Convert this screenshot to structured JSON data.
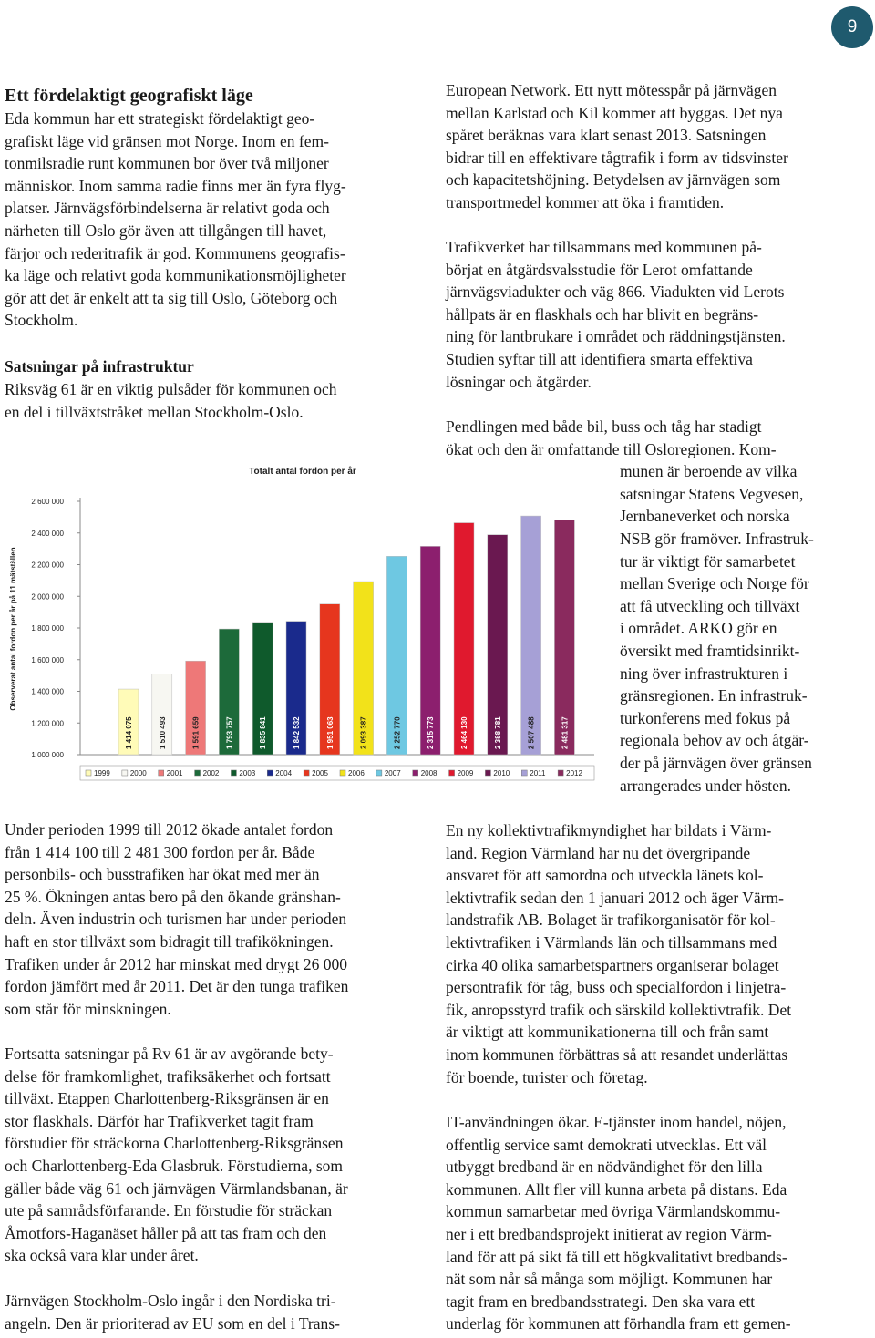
{
  "page_number": "9",
  "left": {
    "heading": "Ett fördelaktigt geografiskt läge",
    "paragraph_1": [
      "Eda kommun har ett strategiskt fördelaktigt geo-",
      "grafiskt läge vid gränsen mot Norge. Inom en fem-",
      "tonmilsradie runt kommunen bor över två miljoner",
      "människor. Inom samma radie finns mer än fyra flyg-",
      "platser. Järnvägsförbindelserna är relativt goda och",
      "närheten till Oslo gör även att tillgången till havet,",
      "färjor och rederitrafik är god. Kommunens geografis-",
      "ka läge och relativt goda kommunikationsmöjligheter",
      "gör att det är enkelt att ta sig till Oslo, Göteborg och",
      "Stockholm."
    ],
    "subheading": "Satsningar på infrastruktur",
    "paragraph_2": [
      "Riksväg 61 är en viktig pulsåder för kommunen och",
      "en del i tillväxtstråket mellan Stockholm-Oslo."
    ],
    "paragraph_3": [
      "Under perioden 1999 till 2012 ökade antalet fordon",
      "från 1 414 100 till 2 481 300 fordon per år. Både",
      "personbils- och busstrafiken har ökat med mer än",
      "25 %. Ökningen antas bero på den ökande gränshan-",
      "deln. Även industrin och turismen har under perioden",
      "haft en stor tillväxt som bidragit till trafikökningen.",
      "Trafiken under år 2012 har minskat med drygt 26 000",
      "fordon jämfört med år 2011. Det är den tunga trafiken",
      "som står för minskningen."
    ],
    "paragraph_4": [
      "Fortsatta satsningar på Rv 61 är av avgörande bety-",
      "delse för framkomlighet, trafiksäkerhet och fortsatt",
      "tillväxt. Etappen Charlottenberg-Riksgränsen är en",
      "stor flaskhals. Därför har Trafikverket tagit fram",
      "förstudier för sträckorna Charlottenberg-Riksgränsen",
      "och Charlottenberg-Eda Glasbruk. Förstudierna, som",
      "gäller både väg 61 och järnvägen Värmlandsbanan, är",
      "ute på samrådsförfarande. En förstudie för sträckan",
      "Åmotfors-Haganäset håller på att tas fram och den",
      "ska också vara klar under året."
    ],
    "paragraph_5": [
      "Järnvägen Stockholm-Oslo ingår i den Nordiska tri-",
      "angeln. Den är prioriterad av EU som en del i Trans-"
    ]
  },
  "right": {
    "paragraph_1": [
      "European Network. Ett nytt mötesspår på järnvägen",
      "mellan Karlstad och Kil kommer att byggas. Det nya",
      "spåret beräknas vara klart senast 2013. Satsningen",
      "bidrar till en effektivare tågtrafik i form av tidsvinster",
      "och kapacitetshöjning. Betydelsen av järnvägen som",
      "transportmedel kommer att öka i framtiden."
    ],
    "paragraph_2": [
      "Trafikverket har tillsammans med kommunen på-",
      "börjat en åtgärdsvalsstudie för Lerot omfattande",
      "järnvägsviadukter och väg 866. Viadukten vid Lerots",
      "hållpats är en flaskhals och har blivit en begräns-",
      "ning för lantbrukare i området och räddningstjänsten.",
      "Studien syftar till att identifiera smarta effektiva",
      "lösningar och åtgärder."
    ],
    "paragraph_3": [
      "Pendlingen med både bil, buss och tåg har stadigt",
      "ökat och den är omfattande till Osloregionen. Kom-",
      "munen är beroende av vilka",
      "satsningar Statens Vegvesen,",
      "Jernbaneverket och norska",
      "NSB gör framöver. Infrastruk-",
      "tur är viktigt för samarbetet",
      "mellan Sverige och Norge för",
      "att få utveckling och tillväxt",
      "i området. ARKO gör en",
      "översikt med framtidsinrikt-",
      "ning över infrastrukturen i",
      "gränsregionen. En infrastruk-",
      "turkonferens med fokus på",
      "regionala behov av och åtgär-",
      "der på järnvägen över gränsen",
      "arrangerades under hösten."
    ],
    "paragraph_4": [
      "En ny kollektivtrafikmyndighet har bildats i Värm-",
      "land. Region Värmland har nu det övergripande",
      "ansvaret för att samordna och utveckla länets kol-",
      "lektivtrafik sedan den 1 januari 2012 och äger Värm-",
      "landstrafik AB. Bolaget är trafikorganisatör för kol-",
      "lektivtrafiken i Värmlands län och tillsammans med",
      "cirka 40 olika samarbetspartners organiserar bolaget",
      "persontrafik för tåg, buss och specialfordon i linjetra-",
      "fik, anropsstyrd trafik och särskild kollektivtrafik. Det",
      "är viktigt att kommunikationerna till och från samt",
      "inom kommunen förbättras så att resandet underlättas",
      "för boende, turister och företag."
    ],
    "paragraph_5": [
      "IT-användningen ökar. E-tjänster inom handel, nöjen,",
      "offentlig service samt demokrati utvecklas. Ett väl",
      "utbyggt bredband är en nödvändighet för den lilla",
      "kommunen. Allt fler vill kunna arbeta på distans. Eda",
      "kommun samarbetar med övriga Värmlandskommu-",
      "ner i ett bredbandsprojekt initierat av region Värm-",
      "land för att på sikt få till ett högkvalitativt bredbands-",
      "nät som når så många som möjligt. Kommunen har",
      "tagit fram en bredbandsstrategi. Den ska vara ett",
      "underlag för kommunen att förhandla fram ett gemen-"
    ]
  },
  "chart_data": {
    "type": "bar",
    "title": "Totalt antal fordon per år",
    "y_label": "Observerat antal fordon per år på 11 mätställen",
    "categories": [
      "1999",
      "2000",
      "2001",
      "2002",
      "2003",
      "2004",
      "2005",
      "2006",
      "2007",
      "2008",
      "2009",
      "2010",
      "2011",
      "2012"
    ],
    "values": [
      1414075,
      1510493,
      1591659,
      1793757,
      1835841,
      1842532,
      1951063,
      2093387,
      2252770,
      2315773,
      2464130,
      2388781,
      2507488,
      2481317
    ],
    "value_labels": [
      "1 414 075",
      "1 510 493",
      "1 591 659",
      "1 793 757",
      "1 835 841",
      "1 842 532",
      "1 951 063",
      "2 093 387",
      "2 252 770",
      "2 315 773",
      "2 464 130",
      "2 388 781",
      "2 507 488",
      "2 481 317"
    ],
    "colors": [
      "#fffbb8",
      "#f7f7f2",
      "#ee7878",
      "#1d6a3a",
      "#0f5a2c",
      "#1a2a8c",
      "#e6361e",
      "#f2e21a",
      "#6ec8e2",
      "#8c1f6e",
      "#e0192e",
      "#6a1850",
      "#a6a0d6",
      "#8a2a5e"
    ],
    "ylim": [
      1000000,
      2600000
    ],
    "yticks": [
      {
        "value": 1000000,
        "label": "1 000 000"
      },
      {
        "value": 1200000,
        "label": "1 200 000"
      },
      {
        "value": 1400000,
        "label": "1 400 000"
      },
      {
        "value": 1600000,
        "label": "1 600 000"
      },
      {
        "value": 1800000,
        "label": "1 800 000"
      },
      {
        "value": 2000000,
        "label": "2 000 000"
      },
      {
        "value": 2200000,
        "label": "2 200 000"
      },
      {
        "value": 2400000,
        "label": "2 400 000"
      },
      {
        "value": 2600000,
        "label": "2 600 000"
      }
    ],
    "grid": false,
    "legend": "bottom"
  }
}
